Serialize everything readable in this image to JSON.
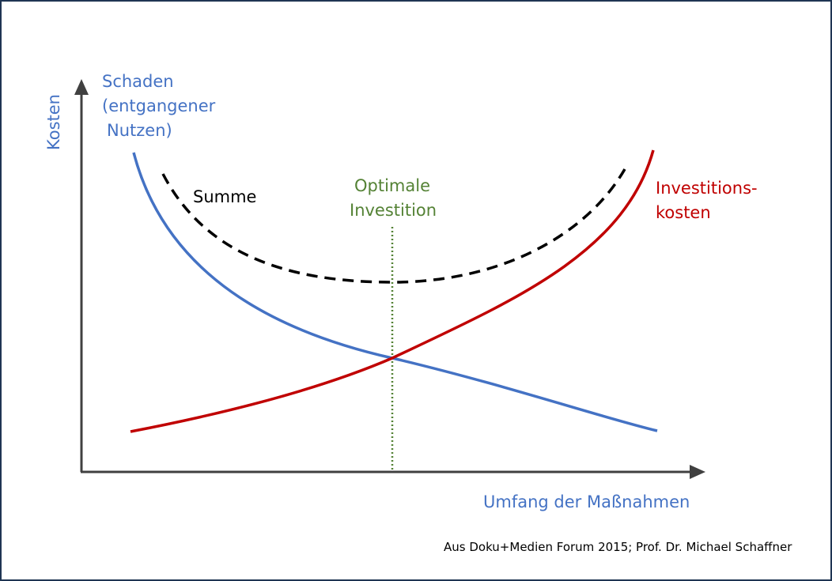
{
  "diagram": {
    "y_axis_label": "Kosten",
    "x_axis_label": "Umfang der Maßnahmen",
    "schaden_label": [
      "Schaden",
      "(entgangener",
      "Nutzen)"
    ],
    "summe_label": "Summe",
    "optimum_label": [
      "Optimale",
      "Investition"
    ],
    "investition_label": [
      "Investitions-",
      "kosten"
    ],
    "source": "Aus Doku+Medien Forum 2015; Prof. Dr. Michael Schaffner"
  },
  "colors": {
    "schaden": "#4472c4",
    "investition": "#c00000",
    "summe": "#000000",
    "optimum": "#548235",
    "axis": "#404040",
    "frame": "#1f3553"
  }
}
